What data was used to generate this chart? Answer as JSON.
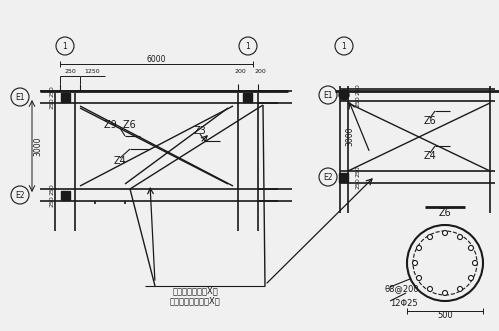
{
  "bg_color": "#f0f0f0",
  "line_color": "#1a1a1a",
  "text_color": "#1a1a1a",
  "title_lines": [
    "见设计变更通知单X号",
    "竣工程洽商记录X号"
  ],
  "z_labels": [
    "Z4",
    "Z3",
    "Z9 Z6",
    "Z4",
    "Z6",
    "Z3"
  ],
  "dim_labels": [
    "250",
    "250",
    "250",
    "250",
    "1250",
    "6000",
    "200",
    "200",
    "3000",
    "3000",
    "500",
    "12Φ25",
    "θ8@200",
    "Z6",
    "Z4",
    "Z6"
  ],
  "circle_labels": [
    "E2",
    "E1",
    "E2",
    "E1",
    "1",
    "1",
    "1"
  ],
  "fig_width": 4.99,
  "fig_height": 3.31
}
